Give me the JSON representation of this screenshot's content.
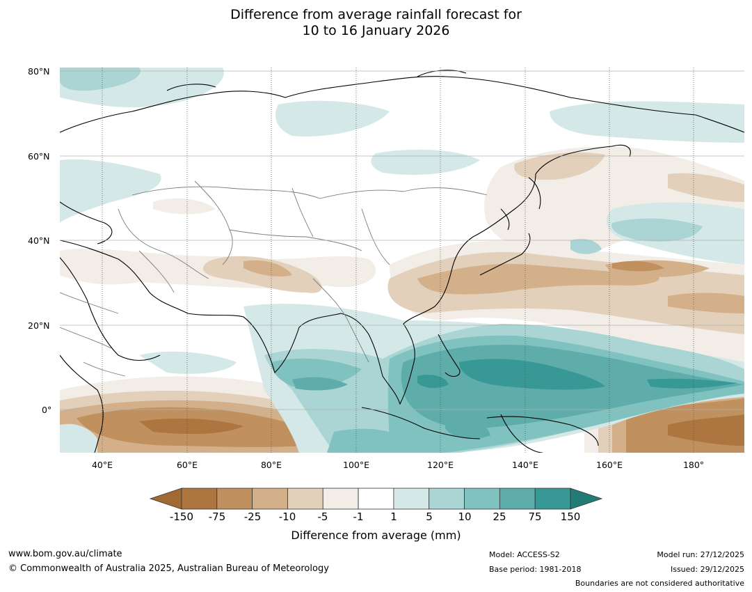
{
  "title": {
    "line1": "Difference from average rainfall forecast for",
    "line2": "10 to 16 January 2026"
  },
  "map": {
    "lat_labels": [
      "80°N",
      "60°N",
      "40°N",
      "20°N",
      "0°"
    ],
    "lon_labels": [
      "40°E",
      "60°E",
      "80°E",
      "100°E",
      "120°E",
      "140°E",
      "160°E",
      "180°"
    ],
    "extent": {
      "lon_min": 30,
      "lon_max": 192,
      "lat_min": -10,
      "lat_max": 81
    }
  },
  "colorbar": {
    "title": "Difference from average (mm)",
    "ticks": [
      "-150",
      "-75",
      "-25",
      "-10",
      "-5",
      "-1",
      "1",
      "5",
      "10",
      "25",
      "75",
      "150"
    ],
    "colors": [
      "#a06a32",
      "#ad7640",
      "#c0915f",
      "#d4b08a",
      "#e3d0bb",
      "#f2ede6",
      "#ffffff",
      "#d4e9e7",
      "#aad5d4",
      "#80c2bf",
      "#5fadab",
      "#379895",
      "#237b78"
    ]
  },
  "footer": {
    "url": "www.bom.gov.au/climate",
    "copyright": "© Commonwealth of Australia 2025, Australian Bureau of Meteorology",
    "model": "Model: ACCESS-S2",
    "base_period": "Base period: 1981-2018",
    "model_run": "Model run: 27/12/2025",
    "issued": "Issued: 29/12/2025",
    "disclaimer": "Boundaries are not considered authoritative"
  }
}
